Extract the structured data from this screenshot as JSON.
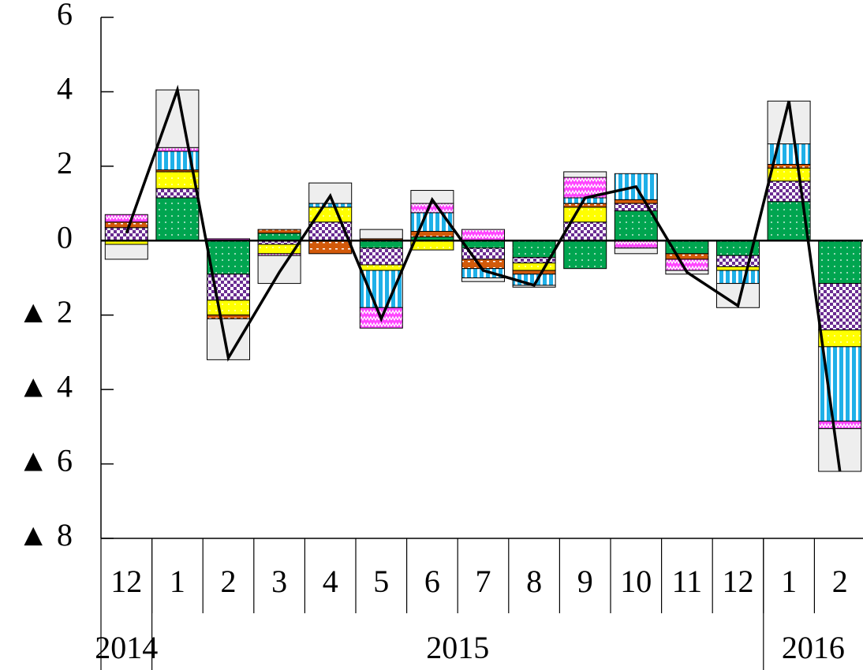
{
  "chart_data": {
    "type": "bar",
    "categories": [
      "12",
      "1",
      "2",
      "3",
      "4",
      "5",
      "6",
      "7",
      "8",
      "9",
      "10",
      "11",
      "12",
      "1",
      "2"
    ],
    "groups": [
      {
        "label": "2014",
        "count": 1
      },
      {
        "label": "2015",
        "count": 12
      },
      {
        "label": "2016",
        "count": 2
      }
    ],
    "ylim": [
      -8,
      6
    ],
    "yticks": [
      6,
      4,
      2,
      0,
      {
        "value": -2,
        "label": "▲ 2"
      },
      {
        "value": -4,
        "label": "▲ 4"
      },
      {
        "value": -6,
        "label": "▲ 6"
      },
      {
        "value": -8,
        "label": "▲ 8"
      }
    ],
    "series": [
      {
        "color": "#00a550",
        "values": [
          0,
          1.15,
          -0.9,
          0.2,
          0,
          -0.2,
          0.1,
          -0.2,
          -0.45,
          -0.75,
          0.8,
          -0.35,
          -0.4,
          1.05,
          -1.15
        ]
      },
      {
        "color": "#6a2c91",
        "values": [
          0.35,
          0.25,
          -0.7,
          -0.1,
          0.5,
          -0.45,
          0,
          -0.3,
          -0.15,
          0.5,
          0.2,
          0,
          -0.3,
          0.55,
          -1.25
        ]
      },
      {
        "color": "#ffff00",
        "values": [
          -0.1,
          0.45,
          -0.4,
          -0.25,
          0.4,
          -0.15,
          -0.25,
          0,
          -0.2,
          0.4,
          0,
          0,
          -0.1,
          0.35,
          -0.45
        ]
      },
      {
        "color": "#d35a0a",
        "values": [
          0.15,
          0.05,
          -0.1,
          0.1,
          -0.35,
          0.05,
          0.15,
          -0.25,
          -0.1,
          0.1,
          0.1,
          -0.15,
          0,
          0.1,
          0
        ]
      },
      {
        "color": "#1fb0e8",
        "values": [
          0,
          0.5,
          0,
          0,
          0.1,
          -1.0,
          0.5,
          -0.25,
          -0.3,
          0.15,
          0.7,
          0,
          -0.35,
          0.55,
          -2.0
        ]
      },
      {
        "color": "#ff44ff",
        "values": [
          0.2,
          0.1,
          0.05,
          -0.05,
          0,
          -0.55,
          0.25,
          0.3,
          0,
          0.55,
          -0.2,
          -0.3,
          0,
          0,
          -0.2
        ]
      },
      {
        "color": "#eeeeee",
        "values": [
          -0.4,
          1.55,
          -1.1,
          -0.75,
          0.55,
          0.25,
          0.35,
          -0.1,
          -0.05,
          0.15,
          -0.15,
          -0.1,
          -0.65,
          1.15,
          -1.15
        ]
      }
    ],
    "line": {
      "color": "#000000",
      "values": [
        0.2,
        4.05,
        -3.15,
        -0.85,
        1.2,
        -2.1,
        1.1,
        -0.8,
        -1.2,
        1.15,
        1.45,
        -0.85,
        -1.75,
        3.75,
        -6.2
      ]
    }
  }
}
